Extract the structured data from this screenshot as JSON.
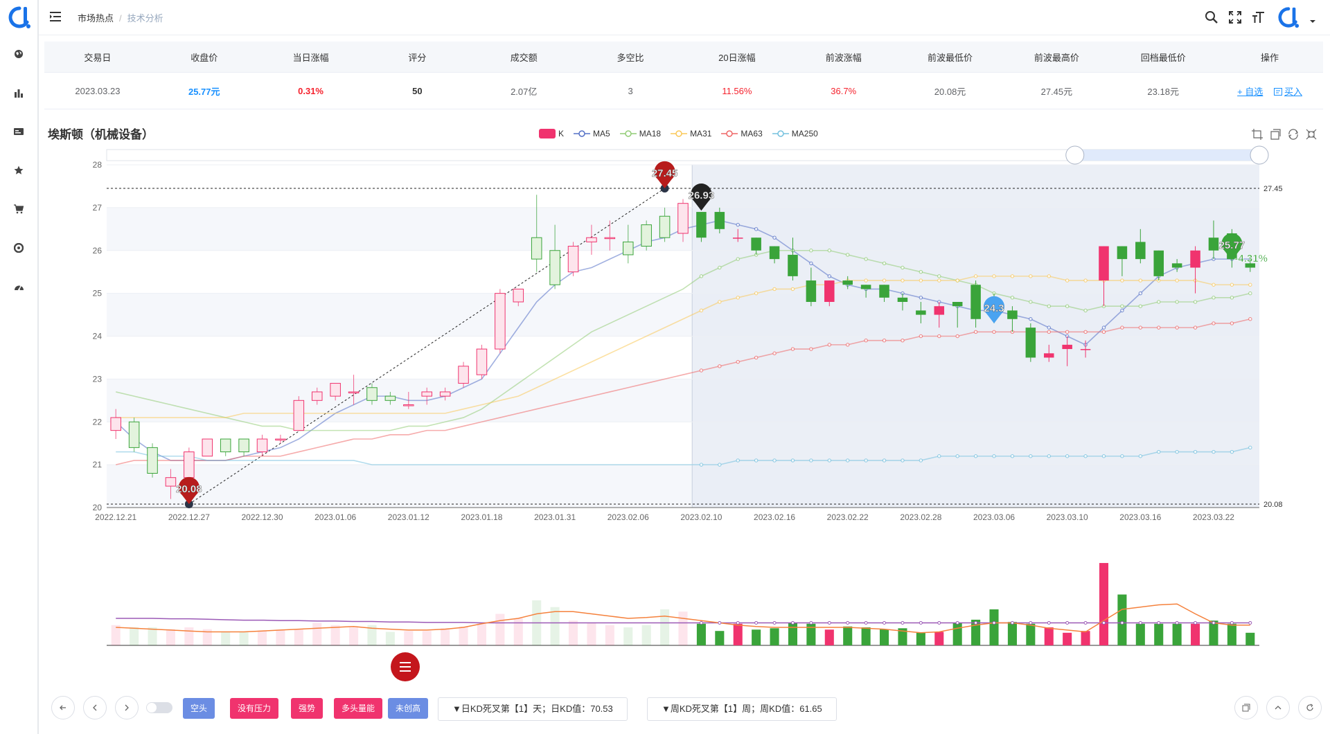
{
  "header": {
    "breadcrumb": [
      "市场热点",
      "技术分析"
    ]
  },
  "table": {
    "columns": [
      "交易日",
      "收盘价",
      "当日涨幅",
      "评分",
      "成交额",
      "多空比",
      "20日涨幅",
      "前波涨幅",
      "前波最低价",
      "前波最高价",
      "回档最低价",
      "操作"
    ],
    "row": {
      "date": "2023.03.23",
      "close": "25.77元",
      "change": "0.31%",
      "score": "50",
      "turnover": "2.07亿",
      "ratio": "3",
      "change20": "11.56%",
      "wave_change": "36.7%",
      "wave_low": "20.08元",
      "wave_high": "27.45元",
      "pullback_low": "23.18元",
      "op_watch": "+ 自选",
      "op_buy": "买入"
    }
  },
  "chart_title": "埃斯顿（机械设备）",
  "legend": [
    {
      "name": "K",
      "color": "#f0336e"
    },
    {
      "name": "MA5",
      "color": "#5470c6"
    },
    {
      "name": "MA18",
      "color": "#91cc75"
    },
    {
      "name": "MA31",
      "color": "#fac858"
    },
    {
      "name": "MA63",
      "color": "#ee6666"
    },
    {
      "name": "MA250",
      "color": "#73c0de"
    }
  ],
  "chart_data": {
    "type": "candlestick",
    "ylim": [
      20,
      28
    ],
    "yticks": [
      20,
      21,
      22,
      23,
      24,
      25,
      26,
      27,
      28
    ],
    "x_labels": [
      "2022.12.21",
      "2022.12.27",
      "2022.12.30",
      "2023.01.06",
      "2023.01.12",
      "2023.01.18",
      "2023.01.31",
      "2023.02.06",
      "2023.02.10",
      "2023.02.16",
      "2023.02.22",
      "2023.02.28",
      "2023.03.06",
      "2023.03.10",
      "2023.03.16",
      "2023.03.22"
    ],
    "markline_values": [
      "27.45",
      "20.08"
    ],
    "annotations": [
      {
        "label": "27.45",
        "index": 30,
        "value": 27.45,
        "color": "#b71c1c"
      },
      {
        "label": "20.08",
        "index": 4,
        "value": 20.08,
        "color": "#b71c1c"
      },
      {
        "label": "26.93",
        "index": 32,
        "value": 26.93,
        "color": "#222222"
      },
      {
        "label": "24.3",
        "index": 48,
        "value": 24.3,
        "color": "#4aa3f0"
      },
      {
        "label": "25.77",
        "index": 61,
        "value": 25.77,
        "color": "#3aa43a"
      },
      {
        "label": "-4.31%",
        "index": 61,
        "value": 25.9,
        "color": "#3aa43a"
      }
    ],
    "candles": [
      [
        21.8,
        22.1,
        21.6,
        22.3
      ],
      [
        22.0,
        21.4,
        21.3,
        22.1
      ],
      [
        21.4,
        20.8,
        20.7,
        21.5
      ],
      [
        20.5,
        20.7,
        20.2,
        20.9
      ],
      [
        20.7,
        21.3,
        20.1,
        21.4
      ],
      [
        21.2,
        21.6,
        21.2,
        21.6
      ],
      [
        21.6,
        21.3,
        21.2,
        21.6
      ],
      [
        21.6,
        21.3,
        21.2,
        21.6
      ],
      [
        21.3,
        21.6,
        21.2,
        21.7
      ],
      [
        21.6,
        21.6,
        21.5,
        21.7
      ],
      [
        21.8,
        22.5,
        21.8,
        22.6
      ],
      [
        22.5,
        22.7,
        22.4,
        22.8
      ],
      [
        22.6,
        22.9,
        22.5,
        22.9
      ],
      [
        22.7,
        22.7,
        22.4,
        23.1
      ],
      [
        22.8,
        22.5,
        22.4,
        22.9
      ],
      [
        22.6,
        22.5,
        22.4,
        22.7
      ],
      [
        22.4,
        22.4,
        22.3,
        22.7
      ],
      [
        22.6,
        22.7,
        22.4,
        22.8
      ],
      [
        22.6,
        22.7,
        22.5,
        22.8
      ],
      [
        22.9,
        23.3,
        22.8,
        23.4
      ],
      [
        23.1,
        23.7,
        23.0,
        23.8
      ],
      [
        23.7,
        25.0,
        23.6,
        25.1
      ],
      [
        24.8,
        25.1,
        24.7,
        25.1
      ],
      [
        26.3,
        25.8,
        25.5,
        27.3
      ],
      [
        26.0,
        25.2,
        25.1,
        26.6
      ],
      [
        25.5,
        26.1,
        25.4,
        26.2
      ],
      [
        26.2,
        26.3,
        25.9,
        26.6
      ],
      [
        26.3,
        26.3,
        26.0,
        26.7
      ],
      [
        26.2,
        25.9,
        25.7,
        26.6
      ],
      [
        26.6,
        26.1,
        26.0,
        26.7
      ],
      [
        26.8,
        26.3,
        26.2,
        27.0
      ],
      [
        26.4,
        27.1,
        26.2,
        27.2
      ],
      [
        26.9,
        26.3,
        26.2,
        26.9
      ],
      [
        26.9,
        26.5,
        26.4,
        27.0
      ],
      [
        26.3,
        26.3,
        26.2,
        26.5
      ],
      [
        26.3,
        26.0,
        25.9,
        26.3
      ],
      [
        26.1,
        25.8,
        25.7,
        26.1
      ],
      [
        25.9,
        25.4,
        25.3,
        26.3
      ],
      [
        25.3,
        24.8,
        24.7,
        25.6
      ],
      [
        24.8,
        25.3,
        24.7,
        25.3
      ],
      [
        25.3,
        25.2,
        25.1,
        25.4
      ],
      [
        25.2,
        25.1,
        24.9,
        25.2
      ],
      [
        25.2,
        24.9,
        24.8,
        25.2
      ],
      [
        24.9,
        24.8,
        24.6,
        25.0
      ],
      [
        24.6,
        24.5,
        24.3,
        24.8
      ],
      [
        24.5,
        24.7,
        24.2,
        24.8
      ],
      [
        24.8,
        24.7,
        24.2,
        24.8
      ],
      [
        25.2,
        24.4,
        24.2,
        25.3
      ],
      [
        24.8,
        24.6,
        24.3,
        25.0
      ],
      [
        24.6,
        24.4,
        24.1,
        24.7
      ],
      [
        24.2,
        23.5,
        23.4,
        24.3
      ],
      [
        23.5,
        23.6,
        23.4,
        23.8
      ],
      [
        23.7,
        23.8,
        23.3,
        24.0
      ],
      [
        23.7,
        23.7,
        23.5,
        23.9
      ],
      [
        25.3,
        26.1,
        24.7,
        26.1
      ],
      [
        26.1,
        25.8,
        25.4,
        26.1
      ],
      [
        26.2,
        25.8,
        25.7,
        26.5
      ],
      [
        26.0,
        25.4,
        25.3,
        26.0
      ],
      [
        25.7,
        25.6,
        25.5,
        25.8
      ],
      [
        25.6,
        26.0,
        25.0,
        26.1
      ],
      [
        26.3,
        26.0,
        25.8,
        26.7
      ],
      [
        26.4,
        25.8,
        25.6,
        26.5
      ],
      [
        25.7,
        25.6,
        25.5,
        25.8
      ]
    ],
    "series": [
      {
        "name": "MA5",
        "color": "#5470c6",
        "values": [
          22.0,
          21.6,
          21.3,
          21.1,
          21.1,
          21.1,
          21.1,
          21.2,
          21.3,
          21.4,
          21.6,
          21.9,
          22.2,
          22.4,
          22.6,
          22.6,
          22.5,
          22.5,
          22.6,
          22.8,
          23.0,
          23.6,
          24.2,
          24.8,
          25.2,
          25.5,
          25.6,
          25.8,
          26.0,
          26.2,
          26.3,
          26.5,
          26.6,
          26.7,
          26.6,
          26.5,
          26.3,
          26.0,
          25.7,
          25.4,
          25.2,
          25.1,
          25.1,
          25.0,
          24.9,
          24.8,
          24.7,
          24.6,
          24.6,
          24.5,
          24.4,
          24.2,
          24.0,
          23.8,
          24.2,
          24.6,
          25.0,
          25.4,
          25.6,
          25.7,
          25.8,
          25.8,
          25.8
        ]
      },
      {
        "name": "MA18",
        "color": "#91cc75",
        "values": [
          22.7,
          22.6,
          22.5,
          22.4,
          22.3,
          22.2,
          22.1,
          22.0,
          21.9,
          21.9,
          21.8,
          21.8,
          21.8,
          21.8,
          21.8,
          21.8,
          21.9,
          21.9,
          22.0,
          22.1,
          22.3,
          22.6,
          22.9,
          23.2,
          23.5,
          23.8,
          24.1,
          24.3,
          24.5,
          24.7,
          24.9,
          25.1,
          25.4,
          25.6,
          25.8,
          25.9,
          26.0,
          26.0,
          26.0,
          26.0,
          25.9,
          25.8,
          25.7,
          25.6,
          25.5,
          25.4,
          25.3,
          25.2,
          25.0,
          24.9,
          24.8,
          24.7,
          24.7,
          24.6,
          24.7,
          24.7,
          24.7,
          24.8,
          24.8,
          24.8,
          24.9,
          24.9,
          25.0
        ]
      },
      {
        "name": "MA31",
        "color": "#fac858",
        "values": [
          22.1,
          22.1,
          22.1,
          22.1,
          22.1,
          22.1,
          22.1,
          22.2,
          22.2,
          22.2,
          22.2,
          22.2,
          22.2,
          22.2,
          22.2,
          22.2,
          22.2,
          22.2,
          22.2,
          22.3,
          22.4,
          22.5,
          22.6,
          22.8,
          23.0,
          23.2,
          23.4,
          23.6,
          23.8,
          24.0,
          24.2,
          24.4,
          24.6,
          24.8,
          24.9,
          25.0,
          25.1,
          25.1,
          25.2,
          25.2,
          25.3,
          25.3,
          25.3,
          25.3,
          25.3,
          25.3,
          25.3,
          25.4,
          25.4,
          25.4,
          25.4,
          25.4,
          25.3,
          25.3,
          25.3,
          25.3,
          25.3,
          25.3,
          25.3,
          25.3,
          25.2,
          25.2,
          25.2
        ]
      },
      {
        "name": "MA63",
        "color": "#ee6666",
        "values": [
          21.0,
          21.1,
          21.1,
          21.1,
          21.1,
          21.1,
          21.1,
          21.2,
          21.2,
          21.2,
          21.3,
          21.4,
          21.5,
          21.6,
          21.6,
          21.7,
          21.7,
          21.8,
          21.8,
          21.9,
          22.0,
          22.1,
          22.2,
          22.3,
          22.4,
          22.5,
          22.6,
          22.7,
          22.8,
          22.9,
          23.0,
          23.1,
          23.2,
          23.3,
          23.4,
          23.5,
          23.6,
          23.7,
          23.7,
          23.8,
          23.8,
          23.9,
          23.9,
          23.9,
          24.0,
          24.0,
          24.0,
          24.1,
          24.1,
          24.1,
          24.1,
          24.1,
          24.1,
          24.1,
          24.1,
          24.2,
          24.2,
          24.2,
          24.2,
          24.2,
          24.3,
          24.3,
          24.4
        ]
      },
      {
        "name": "MA250",
        "color": "#73c0de",
        "values": [
          21.3,
          21.3,
          21.2,
          21.2,
          21.2,
          21.1,
          21.1,
          21.1,
          21.1,
          21.1,
          21.1,
          21.1,
          21.1,
          21.1,
          21.0,
          21.0,
          21.0,
          21.0,
          21.0,
          21.0,
          21.0,
          21.0,
          21.0,
          21.0,
          21.0,
          21.0,
          21.0,
          21.0,
          21.0,
          21.0,
          21.0,
          21.0,
          21.0,
          21.0,
          21.1,
          21.1,
          21.1,
          21.1,
          21.1,
          21.1,
          21.1,
          21.1,
          21.1,
          21.1,
          21.1,
          21.2,
          21.2,
          21.2,
          21.2,
          21.2,
          21.2,
          21.2,
          21.2,
          21.2,
          21.2,
          21.2,
          21.2,
          21.3,
          21.3,
          21.3,
          21.3,
          21.3,
          21.4
        ]
      }
    ],
    "volume": [
      0.45,
      0.4,
      0.4,
      0.36,
      0.4,
      0.36,
      0.3,
      0.3,
      0.33,
      0.35,
      0.36,
      0.5,
      0.45,
      0.4,
      0.45,
      0.3,
      0.32,
      0.32,
      0.38,
      0.42,
      0.5,
      0.7,
      0.6,
      1.0,
      0.85,
      0.55,
      0.5,
      0.45,
      0.4,
      0.45,
      0.8,
      0.75,
      0.48,
      0.32,
      0.48,
      0.35,
      0.38,
      0.5,
      0.48,
      0.35,
      0.42,
      0.4,
      0.36,
      0.38,
      0.28,
      0.3,
      0.5,
      0.57,
      0.8,
      0.52,
      0.48,
      0.4,
      0.28,
      0.32,
      1.83,
      1.13,
      0.48,
      0.48,
      0.48,
      0.48,
      0.55,
      0.48,
      0.28
    ],
    "volume_ma1": [
      0.6,
      0.6,
      0.6,
      0.59,
      0.59,
      0.58,
      0.57,
      0.56,
      0.56,
      0.55,
      0.55,
      0.54,
      0.54,
      0.53,
      0.53,
      0.52,
      0.52,
      0.51,
      0.51,
      0.51,
      0.5,
      0.5,
      0.5,
      0.5,
      0.5,
      0.5,
      0.5,
      0.5,
      0.5,
      0.5,
      0.5,
      0.5,
      0.5,
      0.5,
      0.5,
      0.5,
      0.5,
      0.5,
      0.5,
      0.5,
      0.5,
      0.5,
      0.5,
      0.5,
      0.5,
      0.5,
      0.5,
      0.5,
      0.5,
      0.5,
      0.5,
      0.5,
      0.5,
      0.5,
      0.5,
      0.5,
      0.5,
      0.5,
      0.5,
      0.5,
      0.5,
      0.5,
      0.5
    ],
    "volume_ma2": [
      0.4,
      0.38,
      0.36,
      0.34,
      0.32,
      0.3,
      0.3,
      0.3,
      0.32,
      0.34,
      0.36,
      0.38,
      0.4,
      0.42,
      0.38,
      0.36,
      0.34,
      0.34,
      0.36,
      0.4,
      0.48,
      0.55,
      0.6,
      0.7,
      0.75,
      0.75,
      0.7,
      0.65,
      0.6,
      0.62,
      0.65,
      0.6,
      0.55,
      0.5,
      0.45,
      0.42,
      0.4,
      0.4,
      0.4,
      0.4,
      0.4,
      0.38,
      0.36,
      0.32,
      0.28,
      0.3,
      0.38,
      0.45,
      0.5,
      0.5,
      0.45,
      0.38,
      0.34,
      0.3,
      0.55,
      0.8,
      0.85,
      0.9,
      0.92,
      0.7,
      0.5,
      0.45,
      0.45
    ]
  },
  "bottom": {
    "tags": [
      {
        "label": "空头",
        "color": "blue"
      },
      {
        "label": "没有压力",
        "color": "red"
      },
      {
        "label": "强势",
        "color": "red"
      },
      {
        "label": "多头量能",
        "color": "red"
      },
      {
        "label": "未创高",
        "color": "blue"
      }
    ],
    "kd_daily": "▼日KD死叉第【1】天；日KD值：70.53",
    "kd_weekly": "▼周KD死叉第【1】周；周KD值：61.65"
  }
}
